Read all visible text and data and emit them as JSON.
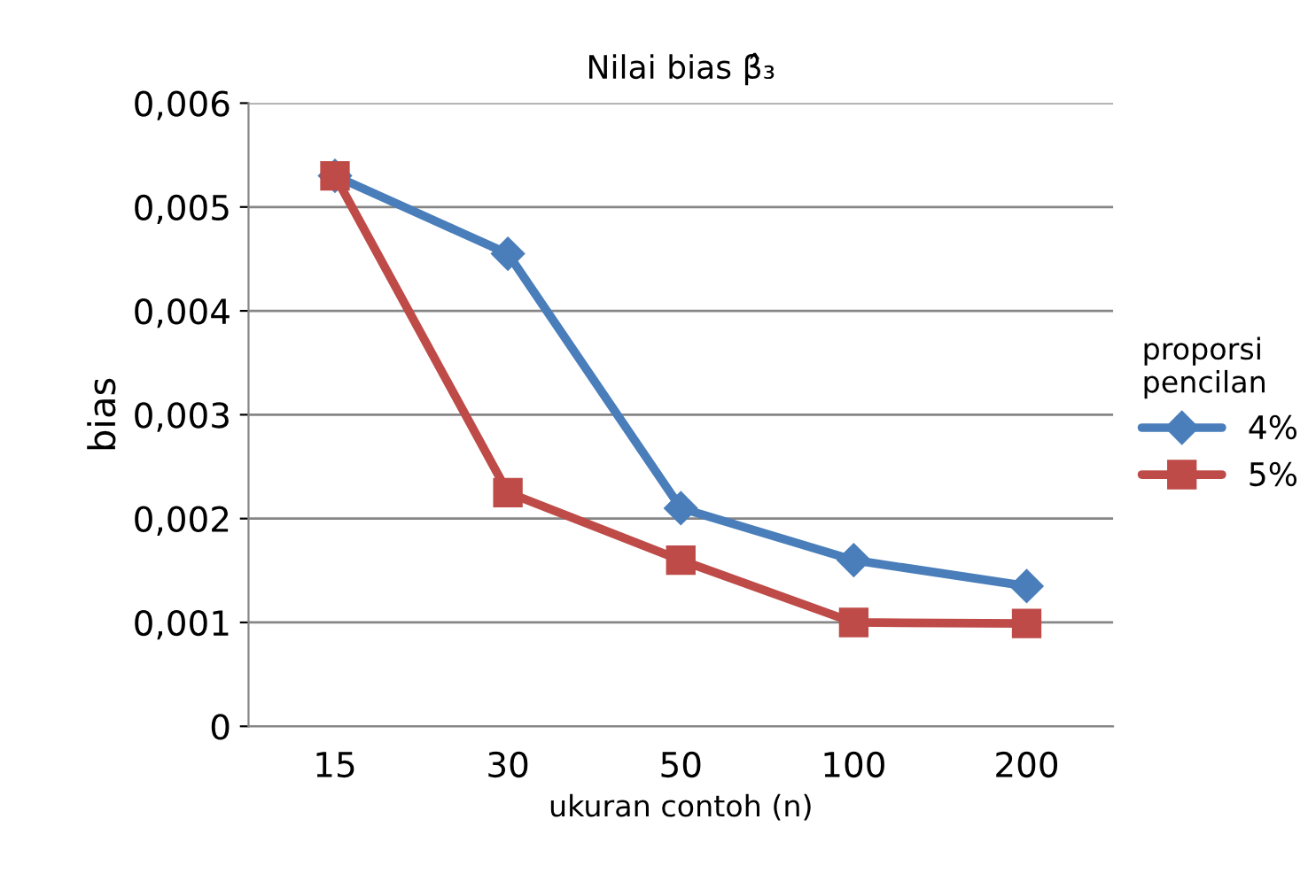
{
  "chart_data": {
    "type": "line",
    "title": "Nilai bias β̂₃",
    "xlabel": "ukuran contoh (n)",
    "ylabel": "bias",
    "legend_title": "proporsi\npencilan",
    "categories": [
      "15",
      "30",
      "50",
      "100",
      "200"
    ],
    "series": [
      {
        "name": "4%",
        "color": "#4a7ebb",
        "marker": "diamond",
        "values": [
          0.0053,
          0.00455,
          0.0021,
          0.0016,
          0.00135
        ]
      },
      {
        "name": "5%",
        "color": "#be4b48",
        "marker": "square",
        "values": [
          0.0053,
          0.00225,
          0.0016,
          0.001,
          0.00099
        ]
      }
    ],
    "ylim": [
      0,
      0.006
    ],
    "yticks": [
      0,
      {
        "value": 0.001,
        "label": "0,001"
      },
      {
        "value": 0.002,
        "label": "0,002"
      },
      {
        "value": 0.003,
        "label": "0,003"
      },
      {
        "value": 0.004,
        "label": "0,004"
      },
      {
        "value": 0.005,
        "label": "0,005"
      },
      {
        "value": 0.006,
        "label": "0,006"
      }
    ],
    "grid": "y",
    "legend": "right",
    "line_style": "solid"
  }
}
